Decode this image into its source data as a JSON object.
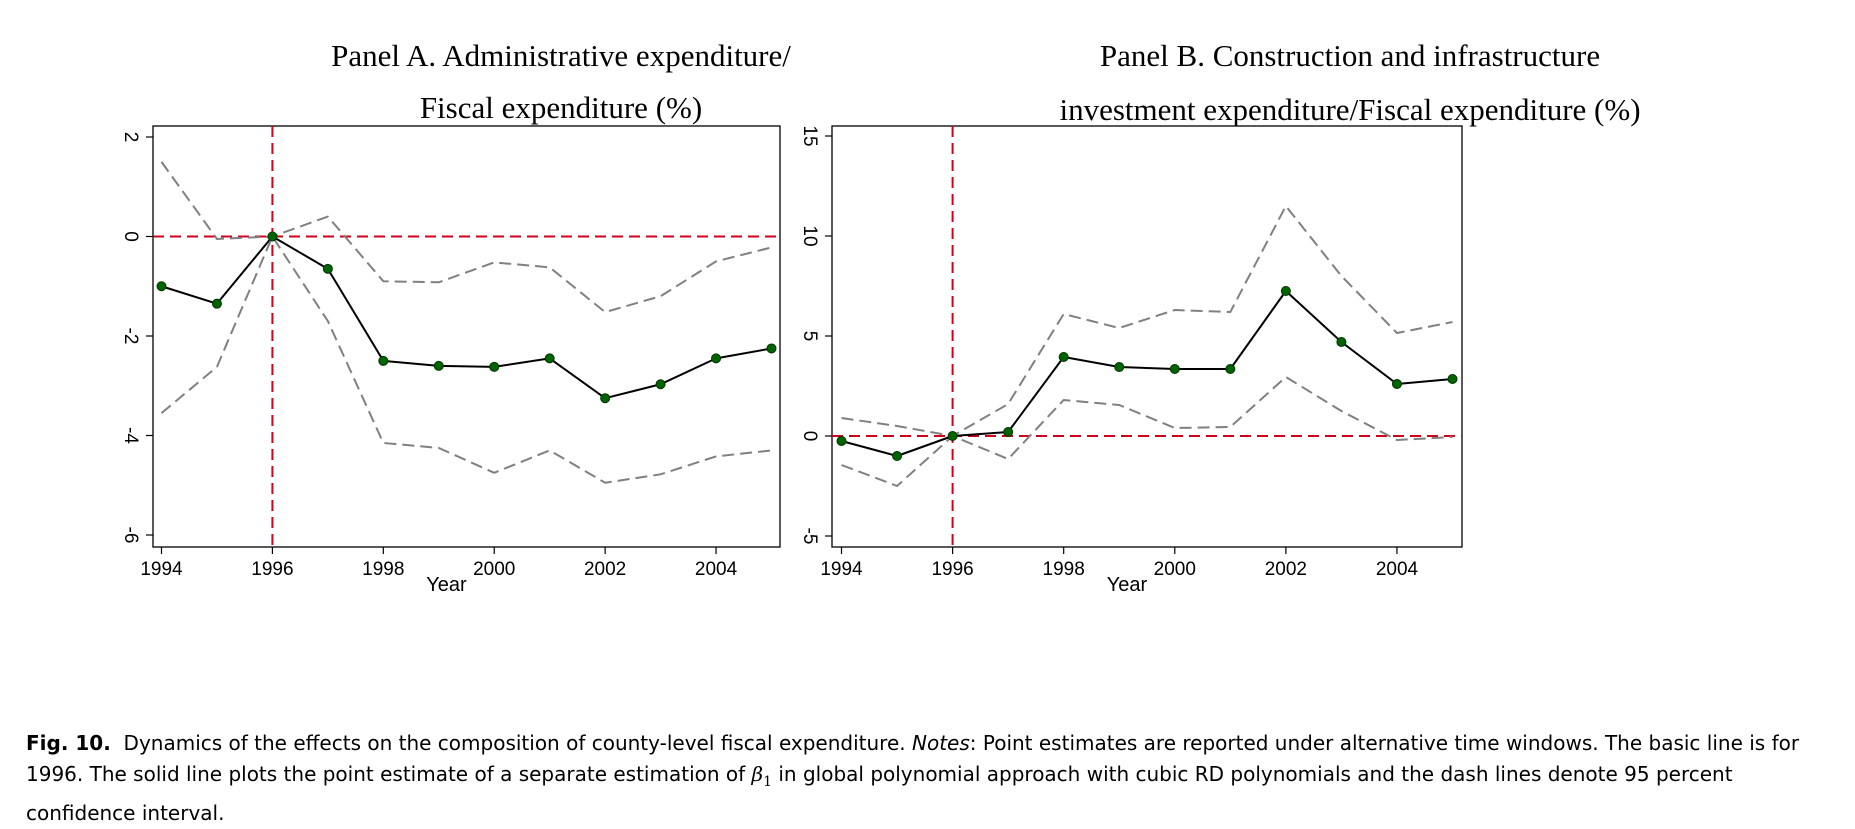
{
  "chart_data": [
    {
      "type": "line",
      "title_lines": [
        "Panel A. Administrative expenditure/",
        "Fiscal expenditure (%)"
      ],
      "xlabel": "Year",
      "ylabel": "",
      "xlim": [
        1994,
        2005
      ],
      "ylim": [
        -6,
        2
      ],
      "x_ticks": [
        1994,
        1996,
        1998,
        2000,
        2002,
        2004
      ],
      "y_ticks": [
        -6,
        -4,
        -2,
        0,
        2
      ],
      "reference_lines": {
        "x": 1996,
        "y": 0,
        "color": "#d0021b"
      },
      "grid": false,
      "x": [
        1994,
        1995,
        1996,
        1997,
        1998,
        1999,
        2000,
        2001,
        2002,
        2003,
        2004,
        2005
      ],
      "series": [
        {
          "role": "point_estimate",
          "style": "solid",
          "color": "#000000",
          "marker_color": "#006400",
          "values": [
            -1.0,
            -1.35,
            0.0,
            -0.65,
            -2.5,
            -2.6,
            -2.62,
            -2.45,
            -3.25,
            -2.97,
            -2.45,
            -2.25
          ]
        },
        {
          "role": "upper_ci",
          "style": "dashed",
          "color": "#808080",
          "values": [
            1.5,
            -0.05,
            0.0,
            0.4,
            -0.9,
            -0.92,
            -0.52,
            -0.62,
            -1.52,
            -1.2,
            -0.5,
            -0.22
          ]
        },
        {
          "role": "lower_ci",
          "style": "dashed",
          "color": "#808080",
          "values": [
            -3.55,
            -2.62,
            0.0,
            -1.7,
            -4.15,
            -4.25,
            -4.75,
            -4.3,
            -4.95,
            -4.78,
            -4.42,
            -4.3
          ]
        }
      ]
    },
    {
      "type": "line",
      "title_lines": [
        "Panel B. Construction and infrastructure",
        "investment expenditure/Fiscal expenditure (%)"
      ],
      "xlabel": "Year",
      "ylabel": "",
      "xlim": [
        1994,
        2005
      ],
      "ylim": [
        -5,
        15
      ],
      "x_ticks": [
        1994,
        1996,
        1998,
        2000,
        2002,
        2004
      ],
      "y_ticks": [
        -5,
        0,
        5,
        10,
        15
      ],
      "reference_lines": {
        "x": 1996,
        "y": 0,
        "color": "#d0021b"
      },
      "grid": false,
      "x": [
        1994,
        1995,
        1996,
        1997,
        1998,
        1999,
        2000,
        2001,
        2002,
        2003,
        2004,
        2005
      ],
      "series": [
        {
          "role": "point_estimate",
          "style": "solid",
          "color": "#000000",
          "marker_color": "#006400",
          "values": [
            -0.25,
            -1.0,
            0.0,
            0.2,
            3.95,
            3.45,
            3.35,
            3.35,
            7.25,
            4.7,
            2.6,
            2.85
          ]
        },
        {
          "role": "upper_ci",
          "style": "dashed",
          "color": "#808080",
          "values": [
            0.9,
            0.5,
            0.0,
            1.6,
            6.1,
            5.4,
            6.3,
            6.2,
            11.5,
            8.0,
            5.15,
            5.7
          ]
        },
        {
          "role": "lower_ci",
          "style": "dashed",
          "color": "#808080",
          "values": [
            -1.45,
            -2.5,
            0.0,
            -1.15,
            1.8,
            1.55,
            0.4,
            0.45,
            2.95,
            1.25,
            -0.2,
            -0.05
          ]
        }
      ]
    }
  ],
  "caption": {
    "label": "Fig. 10.",
    "text1": "Dynamics of the effects on the composition of county-level fiscal expenditure.",
    "notes_label": "Notes",
    "text2": ": Point estimates are reported under alternative time windows. The basic line is for 1996. The solid line plots the point estimate of a separate estimation of",
    "math_symbol": "β",
    "math_subscript": "1",
    "text3": "in global polynomial approach with cubic RD polynomials and the dash lines denote 95 percent confidence interval."
  }
}
